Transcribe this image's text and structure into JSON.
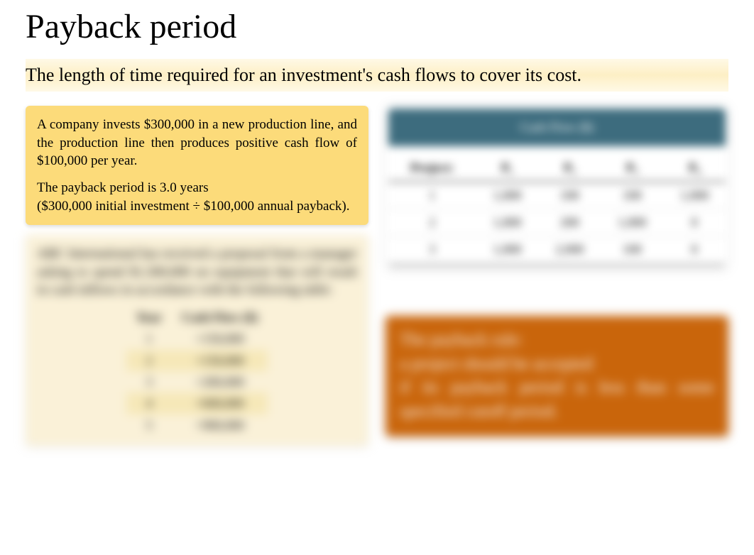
{
  "title": "Payback period",
  "subtitle": "The length of time required for an investment's cash flows to cover its cost.",
  "card_yellow": {
    "p1": "A company invests $300,000 in a new production line, and the production line then produces positive cash flow of $100,000 per year.",
    "p2": "The payback period is 3.0 years",
    "p3": "($300,000 initial investment ÷ $100,000 annual payback)."
  },
  "card_cream": {
    "intro": "ABC International has received a proposal from a manager asking to spend $1,500,000 on equipment that will result in cash inflows in accordance with the following table:",
    "columns": [
      "Year",
      "Cash Flow ($)"
    ],
    "rows": [
      {
        "year": "1",
        "cf": "+150,000",
        "hl": false
      },
      {
        "year": "2",
        "cf": "+150,000",
        "hl": true
      },
      {
        "year": "3",
        "cf": "+200,000",
        "hl": false
      },
      {
        "year": "4",
        "cf": "+600,000",
        "hl": true
      },
      {
        "year": "5",
        "cf": "+900,000",
        "hl": false
      }
    ]
  },
  "right_table": {
    "header": "Cash Flow ($)",
    "columns": [
      "Project:",
      "P₁",
      "P₂",
      "P₃",
      "P₄"
    ],
    "rows": [
      [
        "1",
        "1,000",
        "100",
        "100",
        "1,000"
      ],
      [
        "2",
        "1,000",
        "200",
        "1,000",
        "0"
      ],
      [
        "3",
        "1,000",
        "2,000",
        "100",
        "0"
      ]
    ]
  },
  "card_orange": {
    "line1": "The payback rule:",
    "line2": "a project should be accepted",
    "line3": "if its payback period is less than some specified cutoff period."
  },
  "colors": {
    "yellow_card_bg": "#fcdb7a",
    "cream_card_bg": "#faf1d8",
    "orange_card_bg": "#c9650b",
    "teal_header_bg": "#3d6c7e",
    "subtitle_grad_mid": "#fdefc5"
  }
}
